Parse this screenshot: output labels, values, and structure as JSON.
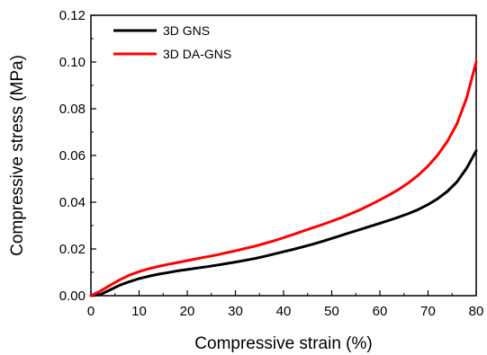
{
  "chart_data": {
    "type": "line",
    "title": "",
    "xlabel": "Compressive strain (%)",
    "ylabel": "Compressive stress (MPa)",
    "xlim": [
      0,
      80
    ],
    "ylim": [
      0,
      0.12
    ],
    "xticks": [
      "0",
      "10",
      "20",
      "30",
      "40",
      "50",
      "60",
      "70",
      "80"
    ],
    "yticks": [
      "0.00",
      "0.02",
      "0.04",
      "0.06",
      "0.08",
      "0.10",
      "0.12"
    ],
    "grid": false,
    "legend_position": "top-left",
    "series": [
      {
        "name": "3D GNS",
        "color": "#000000",
        "x": [
          0,
          2,
          4,
          6,
          8,
          10,
          12,
          14,
          16,
          18,
          20,
          22,
          24,
          26,
          28,
          30,
          32,
          34,
          36,
          38,
          40,
          42,
          44,
          46,
          48,
          50,
          52,
          54,
          56,
          58,
          60,
          62,
          64,
          66,
          68,
          70,
          72,
          74,
          76,
          78,
          80
        ],
        "y": [
          0,
          0.0005,
          0.0025,
          0.0045,
          0.006,
          0.0073,
          0.0083,
          0.0092,
          0.0099,
          0.0106,
          0.0112,
          0.0118,
          0.0124,
          0.013,
          0.0137,
          0.0144,
          0.0151,
          0.0159,
          0.0168,
          0.0178,
          0.0188,
          0.0198,
          0.0209,
          0.022,
          0.0232,
          0.0245,
          0.0258,
          0.0271,
          0.0284,
          0.0297,
          0.031,
          0.0323,
          0.0337,
          0.0352,
          0.0369,
          0.039,
          0.0415,
          0.0446,
          0.0487,
          0.0545,
          0.062
        ]
      },
      {
        "name": "3D DA-GNS",
        "color": "#ff0000",
        "x": [
          0,
          2,
          4,
          6,
          8,
          10,
          12,
          14,
          16,
          18,
          20,
          22,
          24,
          26,
          28,
          30,
          32,
          34,
          36,
          38,
          40,
          42,
          44,
          46,
          48,
          50,
          52,
          54,
          56,
          58,
          60,
          62,
          64,
          66,
          68,
          70,
          72,
          74,
          76,
          78,
          80
        ],
        "y": [
          0,
          0.002,
          0.0045,
          0.0068,
          0.0088,
          0.0103,
          0.0115,
          0.0125,
          0.0134,
          0.0142,
          0.015,
          0.0158,
          0.0166,
          0.0174,
          0.0183,
          0.0192,
          0.0202,
          0.0212,
          0.0223,
          0.0235,
          0.0248,
          0.0262,
          0.0276,
          0.029,
          0.0304,
          0.0319,
          0.0334,
          0.0351,
          0.0369,
          0.0389,
          0.041,
          0.0432,
          0.0456,
          0.0484,
          0.0516,
          0.0555,
          0.0602,
          0.066,
          0.0735,
          0.0845,
          0.1
        ]
      }
    ]
  }
}
